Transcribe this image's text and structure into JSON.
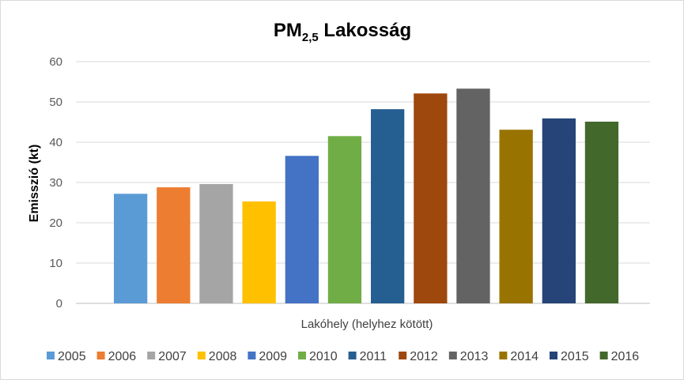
{
  "chart_data": {
    "type": "bar",
    "title": "PM",
    "title_sub": "2,5",
    "title_rest": " Lakosság",
    "xlabel": "Lakóhely (helyhez kötött)",
    "ylabel": "Emisszió (kt)",
    "ylim": [
      0,
      60
    ],
    "yticks": [
      "0",
      "10",
      "20",
      "30",
      "40",
      "50",
      "60"
    ],
    "grid": true,
    "legend_position": "bottom",
    "categories": [
      "Lakóhely (helyhez kötött)"
    ],
    "series": [
      {
        "name": "2005",
        "value": 27.2,
        "color": "#5b9bd5"
      },
      {
        "name": "2006",
        "value": 28.8,
        "color": "#ed7d31"
      },
      {
        "name": "2007",
        "value": 29.6,
        "color": "#a5a5a5"
      },
      {
        "name": "2008",
        "value": 25.3,
        "color": "#ffc000"
      },
      {
        "name": "2009",
        "value": 36.6,
        "color": "#4472c4"
      },
      {
        "name": "2010",
        "value": 41.5,
        "color": "#70ad47"
      },
      {
        "name": "2011",
        "value": 48.2,
        "color": "#255e91"
      },
      {
        "name": "2012",
        "value": 52.1,
        "color": "#9e480e"
      },
      {
        "name": "2013",
        "value": 53.3,
        "color": "#636363"
      },
      {
        "name": "2014",
        "value": 43.1,
        "color": "#997300"
      },
      {
        "name": "2015",
        "value": 45.9,
        "color": "#264478"
      },
      {
        "name": "2016",
        "value": 45.1,
        "color": "#43682b"
      }
    ]
  }
}
